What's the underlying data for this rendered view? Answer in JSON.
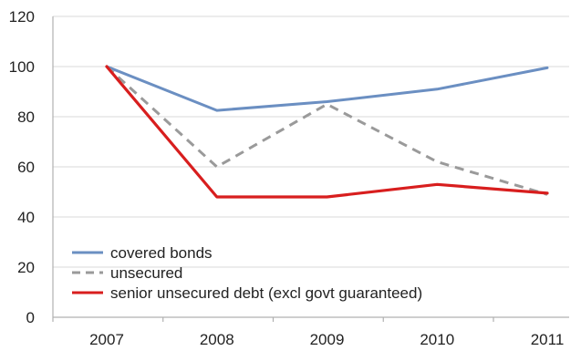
{
  "chart_data": {
    "type": "line",
    "categories": [
      "2007",
      "2008",
      "2009",
      "2010",
      "2011"
    ],
    "ylim": [
      0,
      120
    ],
    "yticks": [
      0,
      20,
      40,
      60,
      80,
      100,
      120
    ],
    "grid": true,
    "legend_position": "bottom-left",
    "series": [
      {
        "name": "covered bonds",
        "values": [
          100,
          82.5,
          86,
          91,
          99.5
        ],
        "color": "#6b8fc2",
        "dash": "solid"
      },
      {
        "name": "unsecured",
        "values": [
          100,
          60,
          85,
          62,
          49
        ],
        "color": "#9a9a9a",
        "dash": "dashed"
      },
      {
        "name": "senior unsecured debt (excl govt guaranteed)",
        "values": [
          100,
          48,
          48,
          53,
          49.5
        ],
        "color": "#d81e1e",
        "dash": "solid"
      }
    ]
  }
}
